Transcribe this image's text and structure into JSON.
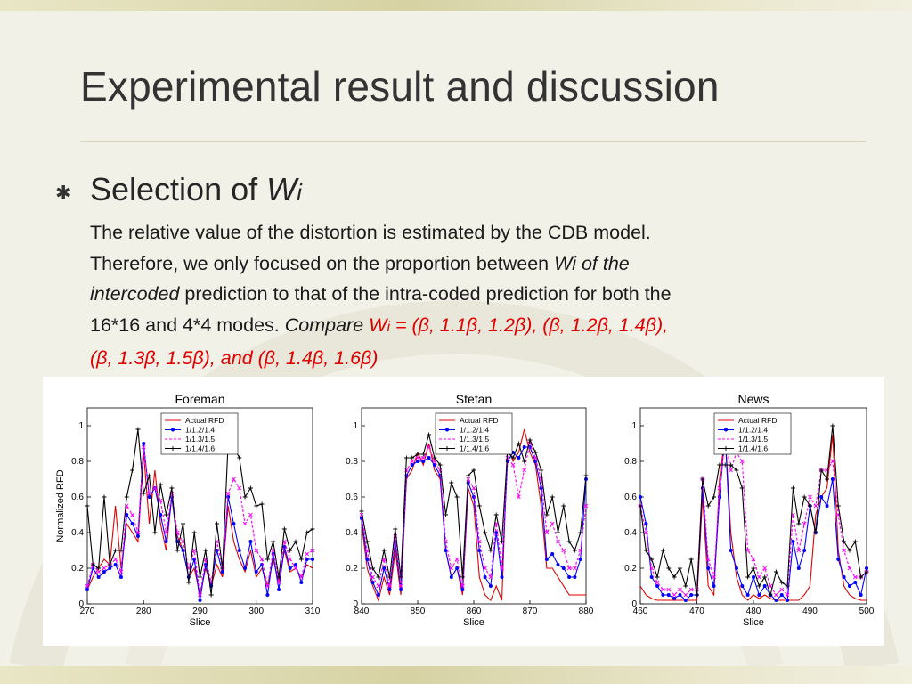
{
  "slide": {
    "title": "Experimental result and discussion",
    "bullet_icon": "asterisk-bullet-icon",
    "heading_prefix": "Selection of ",
    "heading_var": "W",
    "heading_sub": "i",
    "para": {
      "line1": "The relative value of the distortion is estimated by the CDB model.",
      "line2_plain": "Therefore, we only focused on the proportion between ",
      "line2_italic": "Wi of the",
      "line3_italic": "intercoded",
      "line3_plain": " prediction to that of the intra-coded prediction for both the",
      "line4_plain": "16*16 and 4*4 modes. ",
      "line4_italic": "Compare ",
      "line4_red_w": "W",
      "line4_red_sub": "i",
      "line4_red_rest": " = (β, 1.1β, 1.2β), (β, 1.2β, 1.4β),",
      "line5_red": "(β, 1.3β, 1.5β), and (β, 1.4β, 1.6β)"
    }
  },
  "colors": {
    "title": "#333333",
    "emphasis_red": "#e00000",
    "series": [
      "#e00000",
      "#0000ff",
      "#ff00ff",
      "#000000"
    ]
  },
  "chart_data": [
    {
      "type": "line",
      "title": "Foreman",
      "xlabel": "Slice",
      "ylabel": "Normalized RFD",
      "xlim": [
        270,
        310
      ],
      "ylim": [
        0,
        1.1
      ],
      "xticks": [
        270,
        280,
        290,
        300,
        310
      ],
      "yticks": [
        0,
        0.2,
        0.4,
        0.6,
        0.8,
        1
      ],
      "x": [
        270,
        271,
        272,
        273,
        274,
        275,
        276,
        277,
        278,
        279,
        280,
        281,
        282,
        283,
        284,
        285,
        286,
        287,
        288,
        289,
        290,
        291,
        292,
        293,
        294,
        295,
        296,
        297,
        298,
        299,
        300,
        301,
        302,
        303,
        304,
        305,
        306,
        307,
        308,
        309,
        310
      ],
      "series": [
        {
          "name": "Actual RFD",
          "values": [
            0.08,
            0.15,
            0.2,
            0.25,
            0.22,
            0.55,
            0.2,
            0.45,
            0.4,
            0.35,
            0.85,
            0.45,
            0.75,
            0.45,
            0.3,
            0.6,
            0.38,
            0.3,
            0.15,
            0.2,
            0.05,
            0.2,
            0.1,
            0.22,
            0.15,
            0.55,
            0.35,
            0.25,
            0.18,
            0.3,
            0.15,
            0.2,
            0.1,
            0.25,
            0.12,
            0.3,
            0.18,
            0.2,
            0.15,
            0.22,
            0.2
          ]
        },
        {
          "name": "1/1.2/1.4",
          "values": [
            0.08,
            0.2,
            0.15,
            0.18,
            0.2,
            0.22,
            0.15,
            0.5,
            0.45,
            0.38,
            0.9,
            0.6,
            0.65,
            0.5,
            0.35,
            0.6,
            0.35,
            0.3,
            0.15,
            0.25,
            0.02,
            0.22,
            0.1,
            0.3,
            0.18,
            0.6,
            0.45,
            0.3,
            0.2,
            0.35,
            0.18,
            0.22,
            0.05,
            0.28,
            0.08,
            0.32,
            0.2,
            0.22,
            0.12,
            0.25,
            0.25
          ]
        },
        {
          "name": "1/1.3/1.5",
          "values": [
            0.1,
            0.22,
            0.18,
            0.2,
            0.22,
            0.25,
            0.18,
            0.55,
            0.5,
            0.4,
            0.88,
            0.62,
            0.65,
            0.58,
            0.4,
            0.62,
            0.4,
            0.35,
            0.2,
            0.3,
            0.05,
            0.25,
            0.12,
            0.35,
            0.2,
            0.62,
            0.7,
            0.65,
            0.45,
            0.5,
            0.3,
            0.25,
            0.1,
            0.3,
            0.12,
            0.35,
            0.25,
            0.2,
            0.15,
            0.28,
            0.3
          ]
        },
        {
          "name": "1/1.4/1.6",
          "values": [
            0.55,
            0.22,
            0.2,
            0.6,
            0.22,
            0.3,
            0.3,
            0.6,
            0.75,
            0.98,
            0.62,
            0.72,
            0.4,
            0.67,
            0.5,
            0.65,
            0.3,
            0.45,
            0.12,
            0.4,
            0.15,
            0.3,
            0.05,
            0.45,
            0.2,
            0.9,
            0.88,
            0.82,
            0.6,
            0.65,
            0.55,
            0.56,
            0.25,
            0.35,
            0.15,
            0.42,
            0.3,
            0.35,
            0.25,
            0.4,
            0.42
          ]
        }
      ]
    },
    {
      "type": "line",
      "title": "Stefan",
      "xlabel": "Slice",
      "ylabel": "",
      "xlim": [
        840,
        880
      ],
      "ylim": [
        0,
        1.1
      ],
      "xticks": [
        840,
        850,
        860,
        870,
        880
      ],
      "yticks": [
        0,
        0.2,
        0.4,
        0.6,
        0.8,
        1
      ],
      "x": [
        840,
        841,
        842,
        843,
        844,
        845,
        846,
        847,
        848,
        849,
        850,
        851,
        852,
        853,
        854,
        855,
        856,
        857,
        858,
        859,
        860,
        861,
        862,
        863,
        864,
        865,
        866,
        867,
        868,
        869,
        870,
        871,
        872,
        873,
        874,
        875,
        876,
        877,
        878,
        879,
        880
      ],
      "series": [
        {
          "name": "Actual RFD",
          "values": [
            0.45,
            0.2,
            0.1,
            0.02,
            0.15,
            0.05,
            0.3,
            0.05,
            0.7,
            0.75,
            0.85,
            0.78,
            0.9,
            0.75,
            0.7,
            0.3,
            0.15,
            0.2,
            0.05,
            0.65,
            0.55,
            0.15,
            0.05,
            0.02,
            0.1,
            0.02,
            0.9,
            0.8,
            0.85,
            0.98,
            0.85,
            0.78,
            0.55,
            0.2,
            0.2,
            0.15,
            0.1,
            0.05,
            0.05,
            0.05,
            0.05
          ]
        },
        {
          "name": "1/1.2/1.4",
          "values": [
            0.48,
            0.25,
            0.12,
            0.05,
            0.2,
            0.08,
            0.35,
            0.08,
            0.72,
            0.78,
            0.8,
            0.8,
            0.82,
            0.78,
            0.72,
            0.3,
            0.15,
            0.2,
            0.08,
            0.68,
            0.6,
            0.3,
            0.15,
            0.1,
            0.4,
            0.15,
            0.8,
            0.85,
            0.82,
            0.88,
            0.88,
            0.8,
            0.65,
            0.25,
            0.28,
            0.22,
            0.2,
            0.15,
            0.15,
            0.25,
            0.7
          ]
        },
        {
          "name": "1/1.3/1.5",
          "values": [
            0.5,
            0.3,
            0.15,
            0.1,
            0.25,
            0.1,
            0.38,
            0.1,
            0.75,
            0.8,
            0.82,
            0.82,
            0.88,
            0.8,
            0.75,
            0.35,
            0.2,
            0.25,
            0.1,
            0.7,
            0.65,
            0.35,
            0.2,
            0.15,
            0.45,
            0.2,
            0.82,
            0.78,
            0.6,
            0.75,
            0.9,
            0.82,
            0.7,
            0.4,
            0.45,
            0.35,
            0.3,
            0.2,
            0.2,
            0.3,
            0.55
          ]
        },
        {
          "name": "1/1.4/1.6",
          "values": [
            0.52,
            0.35,
            0.2,
            0.15,
            0.3,
            0.15,
            0.42,
            0.15,
            0.82,
            0.82,
            0.84,
            0.84,
            0.95,
            0.82,
            0.78,
            0.5,
            0.68,
            0.6,
            0.15,
            0.72,
            0.75,
            0.55,
            0.4,
            0.3,
            0.5,
            0.35,
            0.85,
            0.82,
            0.9,
            0.8,
            0.92,
            0.85,
            0.75,
            0.5,
            0.6,
            0.4,
            0.55,
            0.35,
            0.3,
            0.4,
            0.72
          ]
        }
      ]
    },
    {
      "type": "line",
      "title": "News",
      "xlabel": "Slice",
      "ylabel": "",
      "xlim": [
        460,
        500
      ],
      "ylim": [
        0,
        1.1
      ],
      "xticks": [
        460,
        470,
        480,
        490,
        500
      ],
      "yticks": [
        0,
        0.2,
        0.4,
        0.6,
        0.8,
        1
      ],
      "x": [
        460,
        461,
        462,
        463,
        464,
        465,
        466,
        467,
        468,
        469,
        470,
        471,
        472,
        473,
        474,
        475,
        476,
        477,
        478,
        479,
        480,
        481,
        482,
        483,
        484,
        485,
        486,
        487,
        488,
        489,
        490,
        491,
        492,
        493,
        494,
        495,
        496,
        497,
        498,
        499,
        500
      ],
      "series": [
        {
          "name": "Actual RFD",
          "values": [
            0.1,
            0.05,
            0.03,
            0.02,
            0.02,
            0.02,
            0.02,
            0.02,
            0.02,
            0.02,
            0.02,
            0.6,
            0.1,
            0.05,
            0.7,
            0.95,
            0.4,
            0.15,
            0.05,
            0.02,
            0.05,
            0.03,
            0.05,
            0.03,
            0.02,
            0.02,
            0.02,
            0.02,
            0.02,
            0.05,
            0.1,
            0.5,
            0.6,
            0.65,
            0.95,
            0.3,
            0.1,
            0.05,
            0.03,
            0.02,
            0.02
          ]
        },
        {
          "name": "1/1.2/1.4",
          "values": [
            0.6,
            0.45,
            0.15,
            0.1,
            0.05,
            0.05,
            0.03,
            0.05,
            0.02,
            0.05,
            0.05,
            0.65,
            0.2,
            0.1,
            0.6,
            0.95,
            0.3,
            0.2,
            0.1,
            0.05,
            0.15,
            0.05,
            0.1,
            0.05,
            0.02,
            0.05,
            0.02,
            0.35,
            0.2,
            0.3,
            0.55,
            0.4,
            0.6,
            0.55,
            0.7,
            0.25,
            0.15,
            0.1,
            0.12,
            0.05,
            0.2
          ]
        },
        {
          "name": "1/1.3/1.5",
          "values": [
            0.55,
            0.4,
            0.2,
            0.12,
            0.08,
            0.08,
            0.05,
            0.08,
            0.05,
            0.08,
            0.08,
            0.7,
            0.25,
            0.15,
            0.65,
            0.92,
            0.75,
            0.85,
            0.8,
            0.3,
            0.25,
            0.15,
            0.2,
            0.1,
            0.05,
            0.08,
            0.05,
            0.5,
            0.3,
            0.45,
            0.6,
            0.55,
            0.75,
            0.75,
            0.8,
            0.5,
            0.3,
            0.2,
            0.15,
            0.15,
            0.18
          ]
        },
        {
          "name": "1/1.4/1.6",
          "values": [
            0.55,
            0.3,
            0.25,
            0.15,
            0.3,
            0.2,
            0.15,
            0.2,
            0.1,
            0.25,
            0.05,
            0.7,
            0.55,
            0.6,
            0.78,
            0.78,
            0.78,
            0.75,
            0.65,
            0.15,
            0.2,
            0.1,
            0.15,
            0.05,
            0.18,
            0.12,
            0.1,
            0.65,
            0.45,
            0.6,
            0.55,
            0.4,
            0.75,
            0.7,
            1.0,
            0.55,
            0.35,
            0.3,
            0.35,
            0.15,
            0.18
          ]
        }
      ]
    }
  ]
}
